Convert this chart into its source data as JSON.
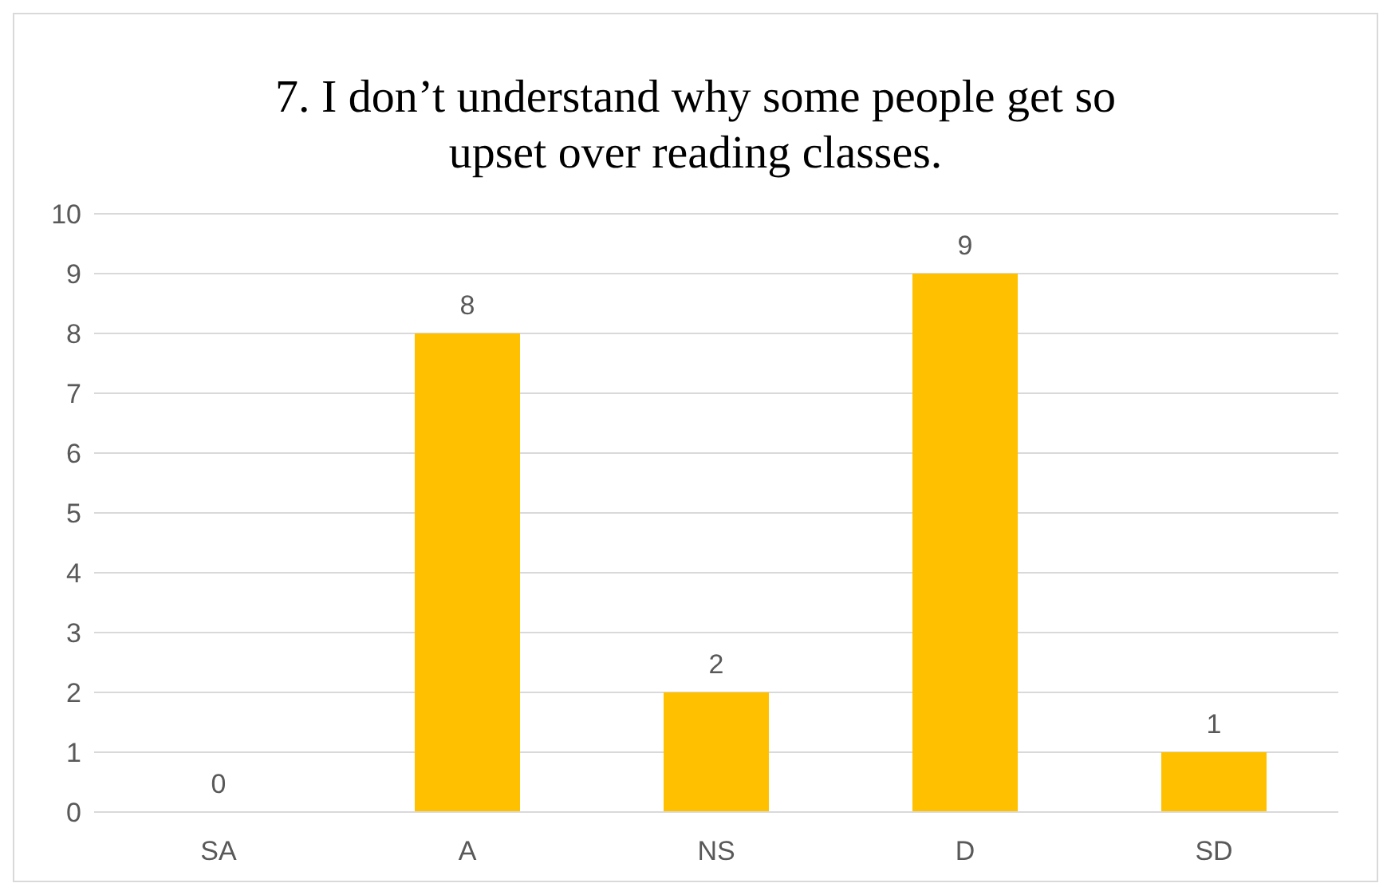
{
  "chart_data": {
    "type": "bar",
    "title": "7. I don’t understand why some people get so upset over reading classes.",
    "categories": [
      "SA",
      "A",
      "NS",
      "D",
      "SD"
    ],
    "values": [
      0,
      8,
      2,
      9,
      1
    ],
    "color": "#ffc000",
    "ylim": [
      0,
      10
    ],
    "yticks": [
      0,
      1,
      2,
      3,
      4,
      5,
      6,
      7,
      8,
      9,
      10
    ],
    "grid": "y",
    "data_labels": true
  }
}
